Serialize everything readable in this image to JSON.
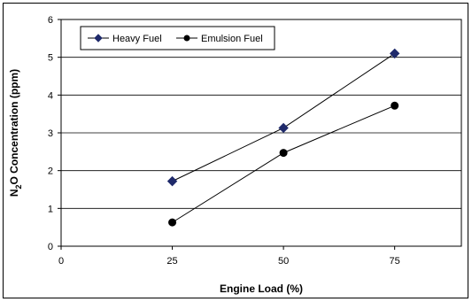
{
  "chart_data": {
    "type": "line",
    "x": [
      25,
      50,
      75
    ],
    "series": [
      {
        "name": "Heavy Fuel",
        "values": [
          1.72,
          3.13,
          5.1
        ],
        "marker": "diamond",
        "color": "#1f2a6b"
      },
      {
        "name": "Emulsion Fuel",
        "values": [
          0.63,
          2.47,
          3.72
        ],
        "marker": "circle",
        "color": "#000000"
      }
    ],
    "xlabel": "Engine Load (%)",
    "ylabel": {
      "prefix": "N",
      "subscript": "2",
      "suffix": "O Concentration (ppm)"
    },
    "xlim": [
      0,
      90
    ],
    "ylim": [
      0,
      6
    ],
    "xticks": [
      0,
      25,
      50,
      75
    ],
    "yticks": [
      0,
      1,
      2,
      3,
      4,
      5,
      6
    ],
    "grid": "y",
    "legend": "top-left"
  }
}
